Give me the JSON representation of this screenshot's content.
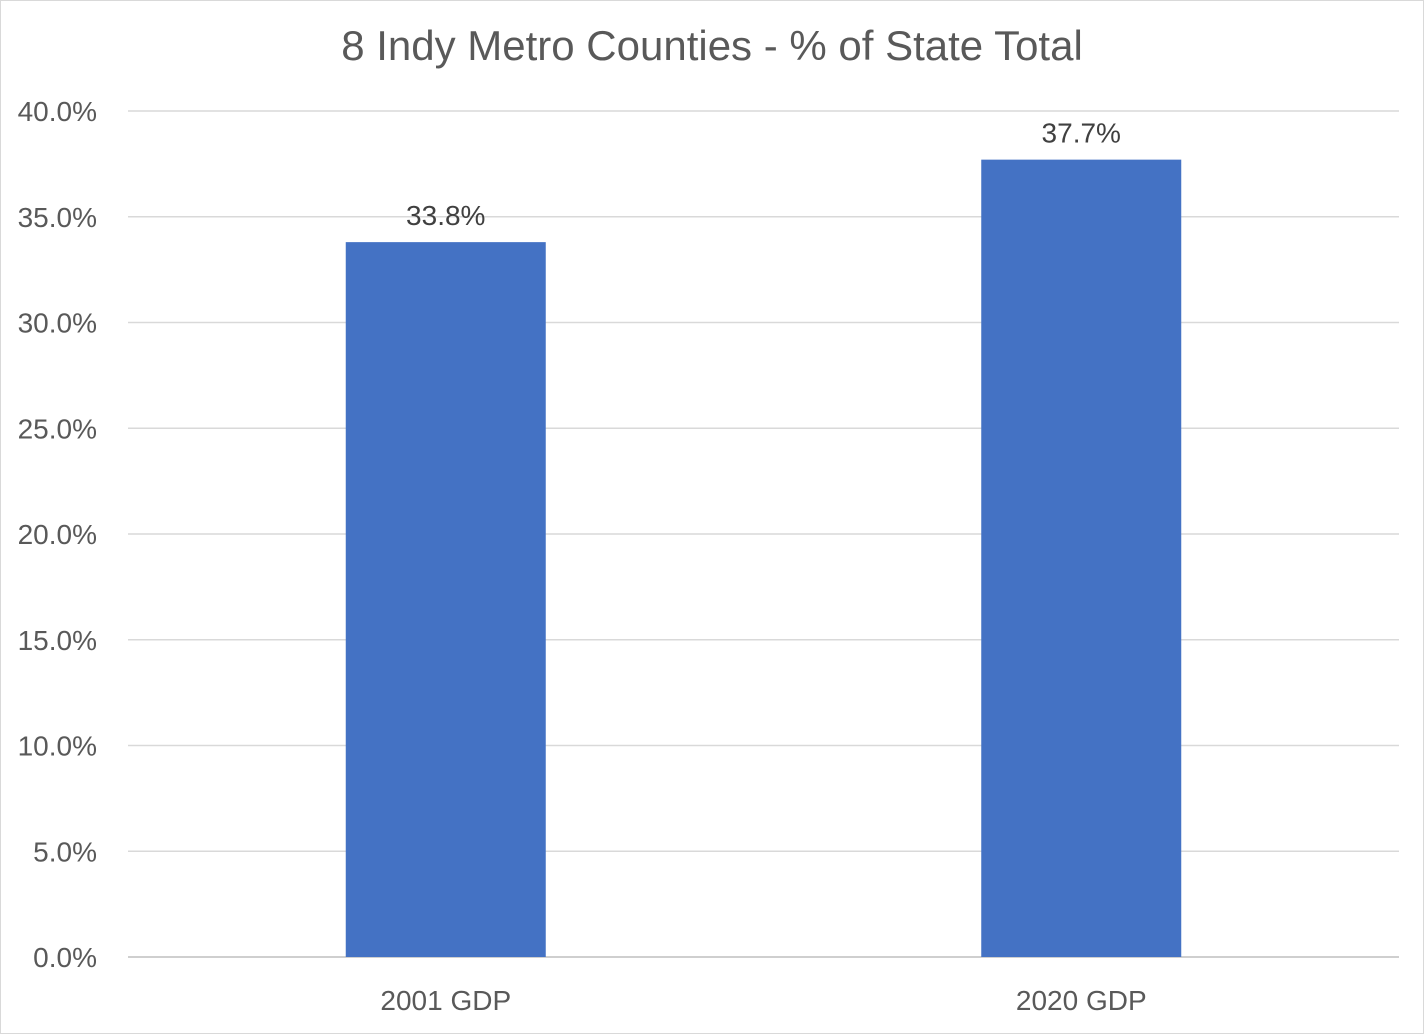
{
  "chart_data": {
    "type": "bar",
    "title": "8 Indy Metro Counties - % of State Total",
    "xlabel": "",
    "ylabel": "",
    "categories": [
      "2001 GDP",
      "2020 GDP"
    ],
    "values": [
      33.8,
      37.7
    ],
    "data_labels": [
      "33.8%",
      "37.7%"
    ],
    "ylim": [
      0,
      40
    ],
    "yticks": [
      0,
      5,
      10,
      15,
      20,
      25,
      30,
      35,
      40
    ],
    "ytick_labels": [
      "0.0%",
      "5.0%",
      "10.0%",
      "15.0%",
      "20.0%",
      "25.0%",
      "30.0%",
      "35.0%",
      "40.0%"
    ],
    "grid": true,
    "legend": "none",
    "colors": {
      "bar": "#4472c4",
      "grid": "#d9d9d9",
      "text": "#595959",
      "axis": "#bfbfbf"
    }
  }
}
